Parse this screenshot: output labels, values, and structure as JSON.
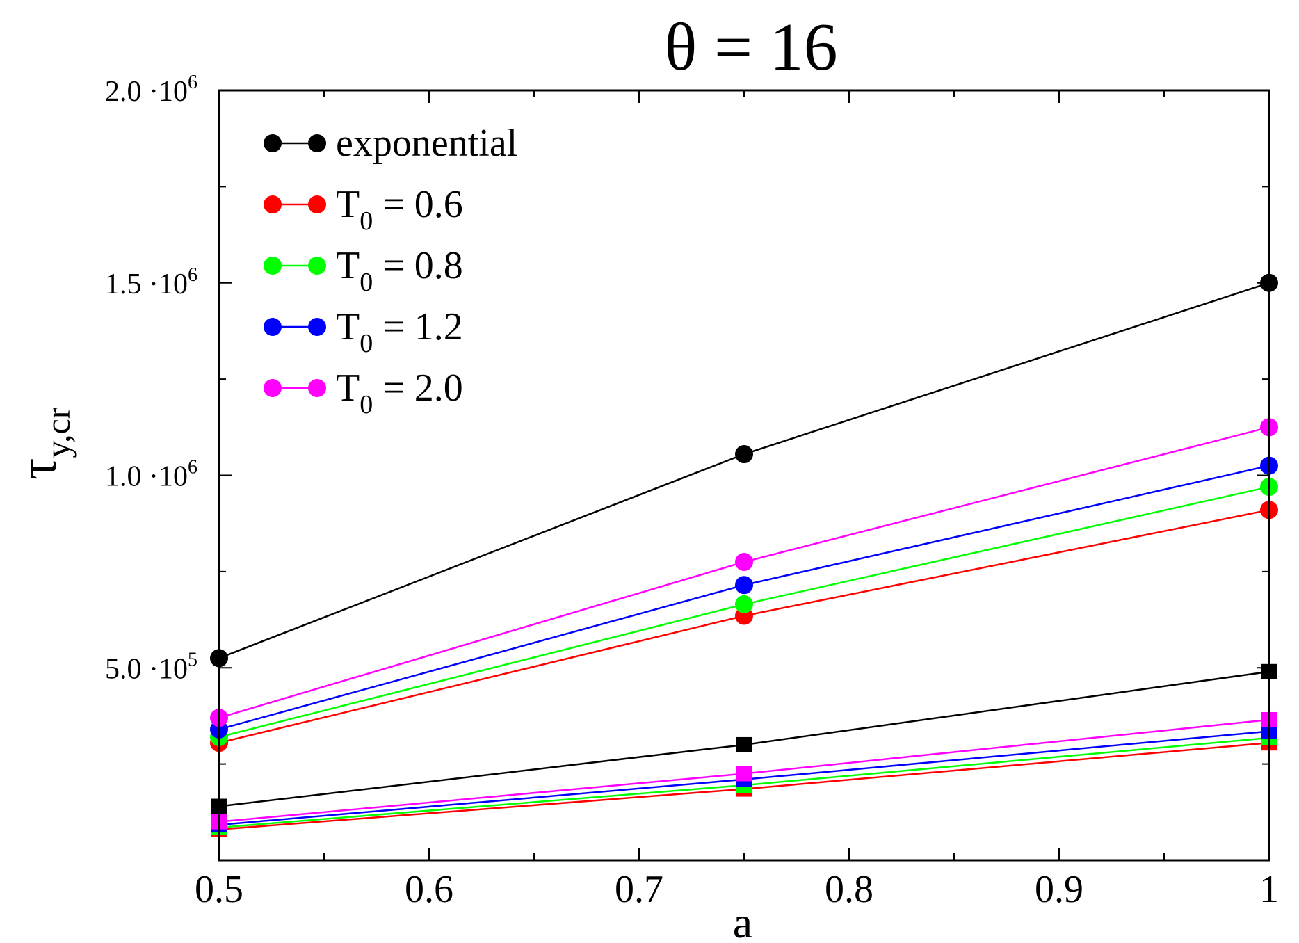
{
  "chart_data": {
    "type": "line",
    "title": "θ = 16",
    "xlabel": "a",
    "ylabel": {
      "base": "τ",
      "sub": "y,cr"
    },
    "xlim": [
      0.5,
      1.0
    ],
    "ylim": [
      0,
      2000000
    ],
    "x_ticks": [
      {
        "value": 0.5,
        "label": "0.5"
      },
      {
        "value": 0.6,
        "label": "0.6"
      },
      {
        "value": 0.7,
        "label": "0.7"
      },
      {
        "value": 0.8,
        "label": "0.8"
      },
      {
        "value": 0.9,
        "label": "0.9"
      },
      {
        "value": 1.0,
        "label": "1"
      }
    ],
    "x_minor_ticks": [
      0.55,
      0.65,
      0.75,
      0.85,
      0.95
    ],
    "y_ticks": [
      {
        "value": 500000,
        "mantissa": "5.0",
        "exponent": "5"
      },
      {
        "value": 1000000,
        "mantissa": "1.0",
        "exponent": "6"
      },
      {
        "value": 1500000,
        "mantissa": "1.5",
        "exponent": "6"
      },
      {
        "value": 2000000,
        "mantissa": "2.0",
        "exponent": "6"
      }
    ],
    "y_minor_ticks": [
      250000,
      750000,
      1250000,
      1750000
    ],
    "tick_multiplier": "·10",
    "grid": false,
    "legend_position": "top-left",
    "x": [
      0.5,
      0.75,
      1.0
    ],
    "series": [
      {
        "name": "exponential",
        "color": "#000000",
        "marker": "circle",
        "values": [
          525000,
          1055000,
          1500000
        ]
      },
      {
        "name": "T0 = 0.6",
        "color": "#ff0000",
        "marker": "circle",
        "values": [
          305000,
          635000,
          910000
        ]
      },
      {
        "name": "T0 = 0.8",
        "color": "#00ff00",
        "marker": "circle",
        "values": [
          320000,
          665000,
          970000
        ]
      },
      {
        "name": "T0 = 1.2",
        "color": "#0000ff",
        "marker": "circle",
        "values": [
          340000,
          715000,
          1025000
        ]
      },
      {
        "name": "T0 = 2.0",
        "color": "#ff00ff",
        "marker": "circle",
        "values": [
          370000,
          775000,
          1125000
        ]
      },
      {
        "color": "#000000",
        "marker": "square",
        "values": [
          140000,
          300000,
          490000
        ]
      },
      {
        "color": "#ff0000",
        "marker": "square",
        "values": [
          80000,
          185000,
          305000
        ]
      },
      {
        "color": "#00ff00",
        "marker": "square",
        "values": [
          85000,
          195000,
          318000
        ]
      },
      {
        "color": "#0000ff",
        "marker": "square",
        "values": [
          92000,
          210000,
          335000
        ]
      },
      {
        "color": "#ff00ff",
        "marker": "square",
        "values": [
          100000,
          225000,
          365000
        ]
      }
    ],
    "legend": [
      {
        "color": "#000000",
        "label": "exponential"
      },
      {
        "color": "#ff0000",
        "label_base": "T",
        "label_sub": "0",
        "label_rest": " = 0.6"
      },
      {
        "color": "#00ff00",
        "label_base": "T",
        "label_sub": "0",
        "label_rest": " = 0.8"
      },
      {
        "color": "#0000ff",
        "label_base": "T",
        "label_sub": "0",
        "label_rest": " = 1.2"
      },
      {
        "color": "#ff00ff",
        "label_base": "T",
        "label_sub": "0",
        "label_rest": " = 2.0"
      }
    ]
  }
}
